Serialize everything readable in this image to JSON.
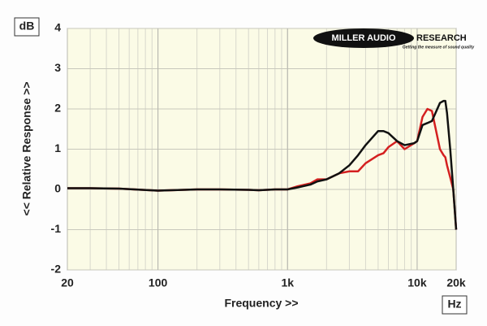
{
  "chart_data": {
    "type": "line",
    "ylabel": "<< Relative Response >>",
    "xlabel": "Frequency >>",
    "y_unit": "dB",
    "x_unit": "Hz",
    "logo": {
      "left": "MILLER AUDIO",
      "right": "RESEARCH",
      "tagline": "Getting the measure of sound quality"
    },
    "xscale": "log",
    "grid": true,
    "xlim": [
      20,
      20000
    ],
    "xticks": [
      20,
      100,
      {
        "value": 1000,
        "label": "1k"
      },
      {
        "value": 10000,
        "label": "10k"
      },
      {
        "value": 20000,
        "label": "20k"
      }
    ],
    "ylim": [
      -2,
      4
    ],
    "yticks": [
      -2,
      -1,
      0,
      1,
      2,
      3,
      4
    ],
    "x": [
      20,
      30,
      50,
      100,
      200,
      300,
      500,
      600,
      800,
      1000,
      1200,
      1500,
      1700,
      2000,
      2500,
      3000,
      3500,
      4000,
      5000,
      5500,
      6000,
      7000,
      8000,
      9500,
      10000,
      11000,
      12000,
      13000,
      15000,
      16000,
      16500,
      17000,
      18000,
      19000,
      20000
    ],
    "series": [
      {
        "color": "#d42020",
        "values": [
          0.03,
          0.03,
          0.02,
          -0.03,
          0,
          0,
          -0.01,
          -0.02,
          0,
          0,
          0.08,
          0.15,
          0.25,
          0.25,
          0.4,
          0.45,
          0.45,
          0.65,
          0.85,
          0.9,
          1.05,
          1.2,
          1.0,
          1.15,
          1.2,
          1.8,
          2.0,
          1.95,
          1.0,
          0.85,
          0.8,
          0.6,
          0.3,
          0,
          -1
        ]
      },
      {
        "color": "#111111",
        "values": [
          0.03,
          0.03,
          0.02,
          -0.03,
          0,
          0,
          -0.01,
          -0.02,
          0,
          0,
          0.05,
          0.12,
          0.2,
          0.25,
          0.4,
          0.6,
          0.85,
          1.1,
          1.45,
          1.45,
          1.4,
          1.2,
          1.1,
          1.15,
          1.2,
          1.6,
          1.65,
          1.7,
          2.15,
          2.2,
          2.2,
          1.9,
          1.0,
          0,
          -1
        ]
      }
    ]
  }
}
